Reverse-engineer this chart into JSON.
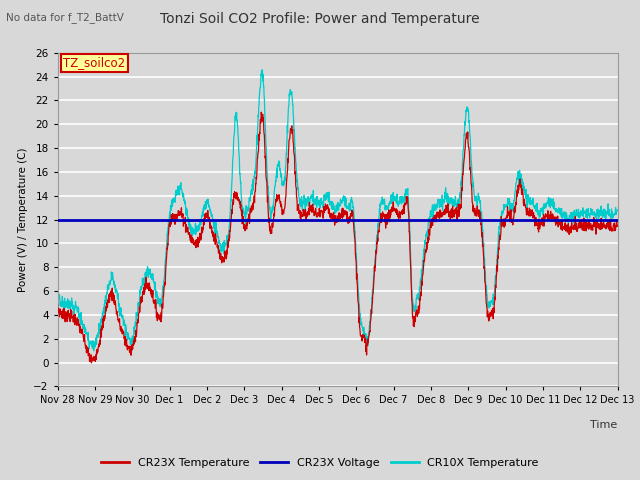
{
  "title": "Tonzi Soil CO2 Profile: Power and Temperature",
  "subtitle": "No data for f_T2_BattV",
  "ylabel": "Power (V) / Temperature (C)",
  "xlabel": "Time",
  "ylim": [
    -2,
    26
  ],
  "yticks": [
    -2,
    0,
    2,
    4,
    6,
    8,
    10,
    12,
    14,
    16,
    18,
    20,
    22,
    24,
    26
  ],
  "voltage_level": 12.0,
  "bg_color": "#d8d8d8",
  "plot_bg_color": "#d8d8d8",
  "grid_color": "#ffffff",
  "cr23x_temp_color": "#cc0000",
  "cr23x_volt_color": "#0000bb",
  "cr10x_temp_color": "#00cccc",
  "legend_box_color": "#ffff99",
  "legend_box_edge": "#cc0000",
  "annotation_label": "TZ_soilco2",
  "xtick_labels": [
    "Nov 28",
    "Nov 29",
    "Nov 30",
    "Dec 1",
    "Dec 2",
    "Dec 3",
    "Dec 4",
    "Dec 5",
    "Dec 6",
    "Dec 7",
    "Dec 8",
    "Dec 9",
    "Dec 10",
    "Dec 11",
    "Dec 12",
    "Dec 13"
  ],
  "n_points": 2000
}
